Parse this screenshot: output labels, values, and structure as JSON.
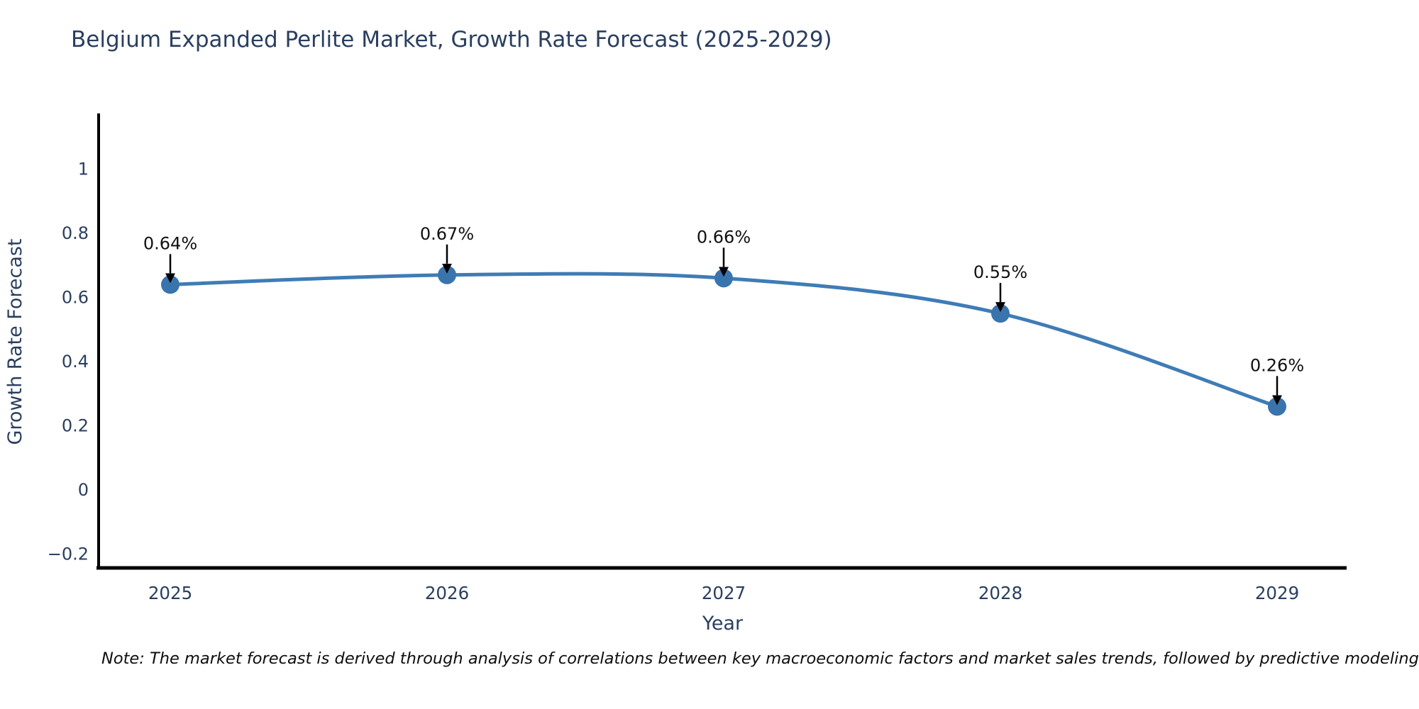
{
  "title": "Belgium Expanded Perlite Market, Growth Rate Forecast (2025-2029)",
  "note": "Note: The market forecast is derived through analysis of correlations between key macroeconomic factors and market sales trends, followed by predictive modeling to project future sales",
  "chart_data": {
    "type": "line",
    "title": "Belgium Expanded Perlite Market, Growth Rate Forecast (2025-2029)",
    "xlabel": "Year",
    "ylabel": "Growth Rate Forecast",
    "x": [
      2025,
      2026,
      2027,
      2028,
      2029
    ],
    "series": [
      {
        "name": "Growth Rate Forecast",
        "values": [
          0.64,
          0.67,
          0.66,
          0.55,
          0.26
        ],
        "point_labels": [
          "0.64%",
          "0.67%",
          "0.66%",
          "0.55%",
          "0.26%"
        ]
      }
    ],
    "y_ticks": [
      {
        "value": 1,
        "label": "1"
      },
      {
        "value": 0.8,
        "label": "0.8"
      },
      {
        "value": 0.6,
        "label": "0.6"
      },
      {
        "value": 0.4,
        "label": "0.4"
      },
      {
        "value": 0.2,
        "label": "0.2"
      },
      {
        "value": 0,
        "label": "0"
      },
      {
        "value": -0.2,
        "label": "−0.2"
      }
    ],
    "ylim": [
      -0.25,
      1.15
    ],
    "line_shape": "spline",
    "grid": false,
    "legend_position": "none",
    "colors": {
      "line": "#3f7cb6",
      "marker": "#3a74ad",
      "axis": "#000000",
      "text": "#2a3f5f",
      "annotation": "#111111",
      "arrow": "#000000",
      "background": "#ffffff"
    }
  }
}
